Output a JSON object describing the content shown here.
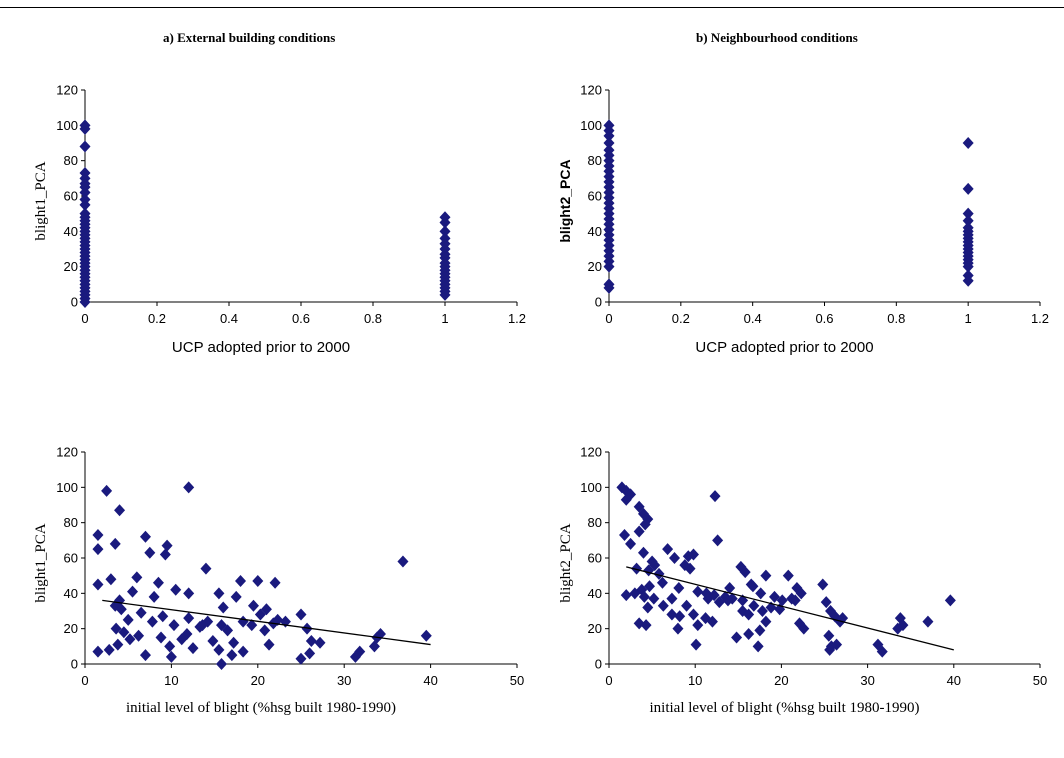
{
  "titles": {
    "a": "a) External  building  conditions",
    "b": "b) Neighbourhood  conditions"
  },
  "colors": {
    "marker": "#1a1a7e",
    "axis": "#000000",
    "trend": "#000000"
  },
  "chart_data": [
    {
      "type": "scatter",
      "title": "",
      "xlabel": "UCP adopted prior to 2000",
      "ylabel": "blight1_PCA",
      "xlim": [
        0,
        1.2
      ],
      "ylim": [
        0,
        120
      ],
      "xticks": [
        "0",
        "0.2",
        "0.4",
        "0.6",
        "0.8",
        "1",
        "1.2"
      ],
      "yticks": [
        "0",
        "20",
        "40",
        "60",
        "80",
        "100",
        "120"
      ],
      "grid": false,
      "trendline": null,
      "points": [
        [
          0,
          100
        ],
        [
          0,
          98
        ],
        [
          0,
          88
        ],
        [
          0,
          73
        ],
        [
          0,
          70
        ],
        [
          0,
          67
        ],
        [
          0,
          65
        ],
        [
          0,
          62
        ],
        [
          0,
          58
        ],
        [
          0,
          55
        ],
        [
          0,
          50
        ],
        [
          0,
          48
        ],
        [
          0,
          46
        ],
        [
          0,
          44
        ],
        [
          0,
          42
        ],
        [
          0,
          40
        ],
        [
          0,
          38
        ],
        [
          0,
          36
        ],
        [
          0,
          34
        ],
        [
          0,
          32
        ],
        [
          0,
          30
        ],
        [
          0,
          28
        ],
        [
          0,
          26
        ],
        [
          0,
          24
        ],
        [
          0,
          22
        ],
        [
          0,
          20
        ],
        [
          0,
          18
        ],
        [
          0,
          16
        ],
        [
          0,
          14
        ],
        [
          0,
          12
        ],
        [
          0,
          10
        ],
        [
          0,
          8
        ],
        [
          0,
          6
        ],
        [
          0,
          4
        ],
        [
          0,
          2
        ],
        [
          0,
          0
        ],
        [
          1,
          48
        ],
        [
          1,
          45
        ],
        [
          1,
          40
        ],
        [
          1,
          36
        ],
        [
          1,
          33
        ],
        [
          1,
          30
        ],
        [
          1,
          27
        ],
        [
          1,
          25
        ],
        [
          1,
          22
        ],
        [
          1,
          20
        ],
        [
          1,
          18
        ],
        [
          1,
          16
        ],
        [
          1,
          14
        ],
        [
          1,
          12
        ],
        [
          1,
          10
        ],
        [
          1,
          8
        ],
        [
          1,
          6
        ],
        [
          1,
          4
        ]
      ]
    },
    {
      "type": "scatter",
      "title": "",
      "xlabel": "UCP adopted prior to 2000",
      "ylabel": "blight2_PCA",
      "xlim": [
        0,
        1.2
      ],
      "ylim": [
        0,
        120
      ],
      "xticks": [
        "0",
        "0.2",
        "0.4",
        "0.6",
        "0.8",
        "1",
        "1.2"
      ],
      "yticks": [
        "0",
        "20",
        "40",
        "60",
        "80",
        "100",
        "120"
      ],
      "grid": false,
      "trendline": null,
      "points": [
        [
          0,
          100
        ],
        [
          0,
          97
        ],
        [
          0,
          94
        ],
        [
          0,
          90
        ],
        [
          0,
          86
        ],
        [
          0,
          83
        ],
        [
          0,
          80
        ],
        [
          0,
          77
        ],
        [
          0,
          74
        ],
        [
          0,
          71
        ],
        [
          0,
          68
        ],
        [
          0,
          65
        ],
        [
          0,
          62
        ],
        [
          0,
          59
        ],
        [
          0,
          56
        ],
        [
          0,
          53
        ],
        [
          0,
          50
        ],
        [
          0,
          47
        ],
        [
          0,
          44
        ],
        [
          0,
          41
        ],
        [
          0,
          38
        ],
        [
          0,
          35
        ],
        [
          0,
          32
        ],
        [
          0,
          29
        ],
        [
          0,
          26
        ],
        [
          0,
          23
        ],
        [
          0,
          20
        ],
        [
          0,
          10
        ],
        [
          0,
          8
        ],
        [
          1,
          90
        ],
        [
          1,
          64
        ],
        [
          1,
          50
        ],
        [
          1,
          46
        ],
        [
          1,
          42
        ],
        [
          1,
          40
        ],
        [
          1,
          38
        ],
        [
          1,
          36
        ],
        [
          1,
          34
        ],
        [
          1,
          32
        ],
        [
          1,
          30
        ],
        [
          1,
          28
        ],
        [
          1,
          26
        ],
        [
          1,
          24
        ],
        [
          1,
          22
        ],
        [
          1,
          20
        ],
        [
          1,
          15
        ],
        [
          1,
          12
        ]
      ]
    },
    {
      "type": "scatter",
      "title": "",
      "xlabel": "initial level of blight (%hsg built 1980-1990)",
      "ylabel": "blight1_PCA",
      "xlim": [
        0,
        50
      ],
      "ylim": [
        0,
        120
      ],
      "xticks": [
        "0",
        "10",
        "20",
        "30",
        "40",
        "50"
      ],
      "yticks": [
        "0",
        "20",
        "40",
        "60",
        "80",
        "100",
        "120"
      ],
      "grid": false,
      "trendline": {
        "x": [
          2,
          40
        ],
        "y": [
          36,
          11
        ]
      },
      "points": [
        [
          2.5,
          98
        ],
        [
          12,
          100
        ],
        [
          4,
          87
        ],
        [
          7,
          72
        ],
        [
          9.5,
          67
        ],
        [
          9.3,
          62
        ],
        [
          1.5,
          73
        ],
        [
          1.5,
          65
        ],
        [
          3.5,
          68
        ],
        [
          36.8,
          58
        ],
        [
          7.5,
          63
        ],
        [
          14,
          54
        ],
        [
          6,
          49
        ],
        [
          3,
          48
        ],
        [
          8.5,
          46
        ],
        [
          18,
          47
        ],
        [
          20,
          47
        ],
        [
          22,
          46
        ],
        [
          1.5,
          45
        ],
        [
          8,
          38
        ],
        [
          4,
          36
        ],
        [
          5.5,
          41
        ],
        [
          10.5,
          42
        ],
        [
          12,
          40
        ],
        [
          15.5,
          40
        ],
        [
          17.5,
          38
        ],
        [
          19.5,
          33
        ],
        [
          21,
          31
        ],
        [
          16,
          32
        ],
        [
          3.5,
          33
        ],
        [
          4.2,
          31
        ],
        [
          6.5,
          29
        ],
        [
          9,
          27
        ],
        [
          12,
          26
        ],
        [
          14.2,
          24
        ],
        [
          15.8,
          22
        ],
        [
          18.3,
          24
        ],
        [
          20.3,
          28
        ],
        [
          22.3,
          25
        ],
        [
          25,
          28
        ],
        [
          5,
          25
        ],
        [
          7.8,
          24
        ],
        [
          10.3,
          22
        ],
        [
          13.3,
          21
        ],
        [
          16.5,
          19
        ],
        [
          19.3,
          22
        ],
        [
          21.8,
          23
        ],
        [
          4.5,
          18
        ],
        [
          6.2,
          16
        ],
        [
          8.8,
          15
        ],
        [
          11.2,
          14
        ],
        [
          14.8,
          13
        ],
        [
          17.2,
          12
        ],
        [
          21.3,
          11
        ],
        [
          26.2,
          13
        ],
        [
          27.2,
          12
        ],
        [
          3.6,
          20
        ],
        [
          5.2,
          14
        ],
        [
          3.8,
          11
        ],
        [
          9.8,
          10
        ],
        [
          12.5,
          9
        ],
        [
          15.5,
          8
        ],
        [
          18.3,
          7
        ],
        [
          7,
          5
        ],
        [
          10,
          4
        ],
        [
          17,
          5
        ],
        [
          25,
          3
        ],
        [
          26,
          6
        ],
        [
          2.8,
          8
        ],
        [
          1.5,
          7
        ],
        [
          31.8,
          7
        ],
        [
          31.3,
          4
        ],
        [
          34.2,
          17
        ],
        [
          33.8,
          15
        ],
        [
          39.5,
          16
        ],
        [
          33.5,
          10
        ],
        [
          25.7,
          20
        ],
        [
          15.8,
          0
        ],
        [
          23.2,
          24
        ],
        [
          20.8,
          19
        ],
        [
          11.8,
          17
        ],
        [
          13.6,
          22
        ]
      ]
    },
    {
      "type": "scatter",
      "title": "",
      "xlabel": "initial level of blight (%hsg built 1980-1990)",
      "ylabel": "blight2_PCA",
      "xlim": [
        0,
        50
      ],
      "ylim": [
        0,
        120
      ],
      "xticks": [
        "0",
        "10",
        "20",
        "30",
        "40",
        "50"
      ],
      "yticks": [
        "0",
        "20",
        "40",
        "60",
        "80",
        "100",
        "120"
      ],
      "grid": false,
      "trendline": {
        "x": [
          2,
          40
        ],
        "y": [
          55,
          8
        ]
      },
      "points": [
        [
          1.5,
          100
        ],
        [
          2,
          98
        ],
        [
          2.5,
          96
        ],
        [
          2,
          93
        ],
        [
          3.5,
          89
        ],
        [
          4,
          85
        ],
        [
          4.5,
          82
        ],
        [
          4.2,
          79
        ],
        [
          3.5,
          75
        ],
        [
          12.3,
          95
        ],
        [
          1.8,
          73
        ],
        [
          4,
          63
        ],
        [
          2.5,
          68
        ],
        [
          6.8,
          65
        ],
        [
          5,
          58
        ],
        [
          12.6,
          70
        ],
        [
          9.8,
          62
        ],
        [
          9.2,
          61
        ],
        [
          7.6,
          60
        ],
        [
          8.8,
          56
        ],
        [
          9.4,
          54
        ],
        [
          5.3,
          56
        ],
        [
          5.8,
          51
        ],
        [
          4.6,
          53
        ],
        [
          3.2,
          54
        ],
        [
          6.2,
          46
        ],
        [
          4.7,
          44
        ],
        [
          3.8,
          42
        ],
        [
          3,
          40
        ],
        [
          2,
          39
        ],
        [
          4.1,
          38
        ],
        [
          5.2,
          37
        ],
        [
          7.3,
          37
        ],
        [
          8.1,
          43
        ],
        [
          10.3,
          41
        ],
        [
          11.3,
          40
        ],
        [
          12.2,
          39
        ],
        [
          13.5,
          38
        ],
        [
          14.3,
          37
        ],
        [
          15.5,
          36
        ],
        [
          16.7,
          44
        ],
        [
          17.6,
          40
        ],
        [
          18.2,
          50
        ],
        [
          19.2,
          38
        ],
        [
          20.1,
          36
        ],
        [
          21.2,
          37
        ],
        [
          21.8,
          43
        ],
        [
          22.3,
          40
        ],
        [
          6.3,
          33
        ],
        [
          7.3,
          28
        ],
        [
          8.2,
          27
        ],
        [
          9.8,
          28
        ],
        [
          11.2,
          26
        ],
        [
          12.8,
          35
        ],
        [
          13.8,
          36
        ],
        [
          16.8,
          33
        ],
        [
          17.8,
          30
        ],
        [
          18.8,
          32
        ],
        [
          19.8,
          31
        ],
        [
          20.8,
          50
        ],
        [
          21.6,
          36
        ],
        [
          22.1,
          23
        ],
        [
          22.6,
          20
        ],
        [
          24.8,
          45
        ],
        [
          25.2,
          35
        ],
        [
          25.7,
          30
        ],
        [
          26.2,
          27
        ],
        [
          26.8,
          24
        ],
        [
          15.5,
          30
        ],
        [
          16.2,
          28
        ],
        [
          15.3,
          55
        ],
        [
          15.8,
          52
        ],
        [
          16.5,
          45
        ],
        [
          14.8,
          15
        ],
        [
          18.2,
          24
        ],
        [
          17.5,
          19
        ],
        [
          16.2,
          17
        ],
        [
          14,
          43
        ],
        [
          3.5,
          23
        ],
        [
          4.3,
          22
        ],
        [
          4.5,
          32
        ],
        [
          10.3,
          22
        ],
        [
          10.1,
          11
        ],
        [
          8,
          20
        ],
        [
          9,
          33
        ],
        [
          12,
          24
        ],
        [
          11.5,
          37
        ],
        [
          25.5,
          16
        ],
        [
          25.8,
          10
        ],
        [
          25.6,
          8
        ],
        [
          26.4,
          11
        ],
        [
          27.1,
          26
        ],
        [
          31.2,
          11
        ],
        [
          31.7,
          7
        ],
        [
          33.8,
          26
        ],
        [
          34.1,
          22
        ],
        [
          33.5,
          20
        ],
        [
          37,
          24
        ],
        [
          39.6,
          36
        ],
        [
          17.3,
          10
        ]
      ]
    }
  ]
}
